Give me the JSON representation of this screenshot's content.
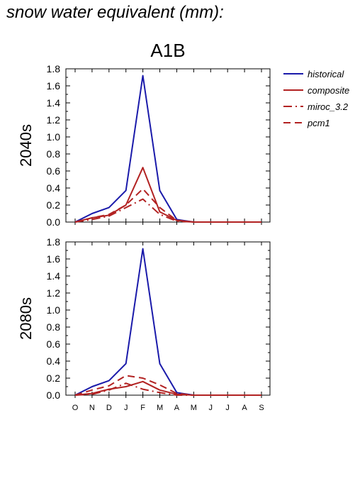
{
  "page_title": "snow water equivalent (mm):",
  "chart_data": {
    "type": "line",
    "title": "A1B",
    "months": [
      "O",
      "N",
      "D",
      "J",
      "F",
      "M",
      "A",
      "M",
      "J",
      "J",
      "A",
      "S"
    ],
    "ylim": [
      0,
      1.8
    ],
    "yticks": [
      "0.0",
      "0.2",
      "0.4",
      "0.6",
      "0.8",
      "1.0",
      "1.2",
      "1.4",
      "1.6",
      "1.8"
    ],
    "legend_position": "right",
    "series_styles": [
      {
        "name": "historical",
        "color": "#1a1aaa",
        "dash": "solid"
      },
      {
        "name": "composite",
        "color": "#b22222",
        "dash": "solid"
      },
      {
        "name": "miroc_3.2",
        "color": "#b22222",
        "dash": "dashdot"
      },
      {
        "name": "pcm1",
        "color": "#b22222",
        "dash": "dashed"
      }
    ],
    "panels": [
      {
        "ylabel": "2040s",
        "series": [
          {
            "name": "historical",
            "values": [
              0.0,
              0.1,
              0.17,
              0.37,
              1.72,
              0.37,
              0.03,
              0.0,
              0.0,
              0.0,
              0.0,
              0.0
            ]
          },
          {
            "name": "composite",
            "values": [
              0.0,
              0.05,
              0.08,
              0.2,
              0.64,
              0.12,
              0.02,
              0.0,
              0.0,
              0.0,
              0.0,
              0.0
            ]
          },
          {
            "name": "miroc_3.2",
            "values": [
              0.0,
              0.03,
              0.07,
              0.17,
              0.27,
              0.09,
              0.01,
              0.0,
              0.0,
              0.0,
              0.0,
              0.0
            ]
          },
          {
            "name": "pcm1",
            "values": [
              0.0,
              0.05,
              0.09,
              0.2,
              0.39,
              0.17,
              0.02,
              0.0,
              0.0,
              0.0,
              0.0,
              0.0
            ]
          }
        ]
      },
      {
        "ylabel": "2080s",
        "series": [
          {
            "name": "historical",
            "values": [
              0.0,
              0.1,
              0.17,
              0.37,
              1.72,
              0.37,
              0.03,
              0.0,
              0.0,
              0.0,
              0.0,
              0.0
            ]
          },
          {
            "name": "composite",
            "values": [
              0.0,
              0.02,
              0.07,
              0.1,
              0.16,
              0.06,
              0.01,
              0.0,
              0.0,
              0.0,
              0.0,
              0.0
            ]
          },
          {
            "name": "miroc_3.2",
            "values": [
              0.0,
              0.01,
              0.06,
              0.14,
              0.07,
              0.03,
              0.0,
              0.0,
              0.0,
              0.0,
              0.0,
              0.0
            ]
          },
          {
            "name": "pcm1",
            "values": [
              0.0,
              0.06,
              0.11,
              0.23,
              0.2,
              0.12,
              0.02,
              0.0,
              0.0,
              0.0,
              0.0,
              0.0
            ]
          }
        ]
      }
    ]
  }
}
